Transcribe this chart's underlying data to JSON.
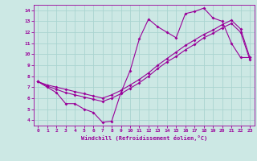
{
  "xlabel": "Windchill (Refroidissement éolien,°C)",
  "bg_color": "#cce8e4",
  "grid_color": "#aad4d0",
  "line_color": "#990099",
  "xlim": [
    -0.5,
    23.5
  ],
  "ylim": [
    3.5,
    14.5
  ],
  "xticks": [
    0,
    1,
    2,
    3,
    4,
    5,
    6,
    7,
    8,
    9,
    10,
    11,
    12,
    13,
    14,
    15,
    16,
    17,
    18,
    19,
    20,
    21,
    22,
    23
  ],
  "yticks": [
    4,
    5,
    6,
    7,
    8,
    9,
    10,
    11,
    12,
    13,
    14
  ],
  "line1_x": [
    0,
    1,
    2,
    3,
    4,
    5,
    6,
    7,
    8,
    9,
    10,
    11,
    12,
    13,
    14,
    15,
    16,
    17,
    18,
    19,
    20,
    21,
    22,
    23
  ],
  "line1_y": [
    7.5,
    7.0,
    6.5,
    5.5,
    5.5,
    5.0,
    4.7,
    3.8,
    3.9,
    6.5,
    8.5,
    11.4,
    13.2,
    12.5,
    12.0,
    11.5,
    13.7,
    13.9,
    14.2,
    13.3,
    13.0,
    11.0,
    9.7,
    9.7
  ],
  "line2_x": [
    0,
    1,
    2,
    3,
    4,
    5,
    6,
    7,
    8,
    9,
    10,
    11,
    12,
    13,
    14,
    15,
    16,
    17,
    18,
    19,
    20,
    21,
    22,
    23
  ],
  "line2_y": [
    7.5,
    7.2,
    7.0,
    6.8,
    6.6,
    6.4,
    6.2,
    6.0,
    6.3,
    6.7,
    7.2,
    7.7,
    8.3,
    9.0,
    9.6,
    10.2,
    10.8,
    11.3,
    11.8,
    12.2,
    12.7,
    13.1,
    12.3,
    9.7
  ],
  "line3_x": [
    0,
    1,
    2,
    3,
    4,
    5,
    6,
    7,
    8,
    9,
    10,
    11,
    12,
    13,
    14,
    15,
    16,
    17,
    18,
    19,
    20,
    21,
    22,
    23
  ],
  "line3_y": [
    7.5,
    7.1,
    6.8,
    6.5,
    6.3,
    6.1,
    5.9,
    5.7,
    6.0,
    6.4,
    6.9,
    7.4,
    8.0,
    8.7,
    9.3,
    9.8,
    10.4,
    10.9,
    11.5,
    11.9,
    12.4,
    12.8,
    12.0,
    9.5
  ]
}
